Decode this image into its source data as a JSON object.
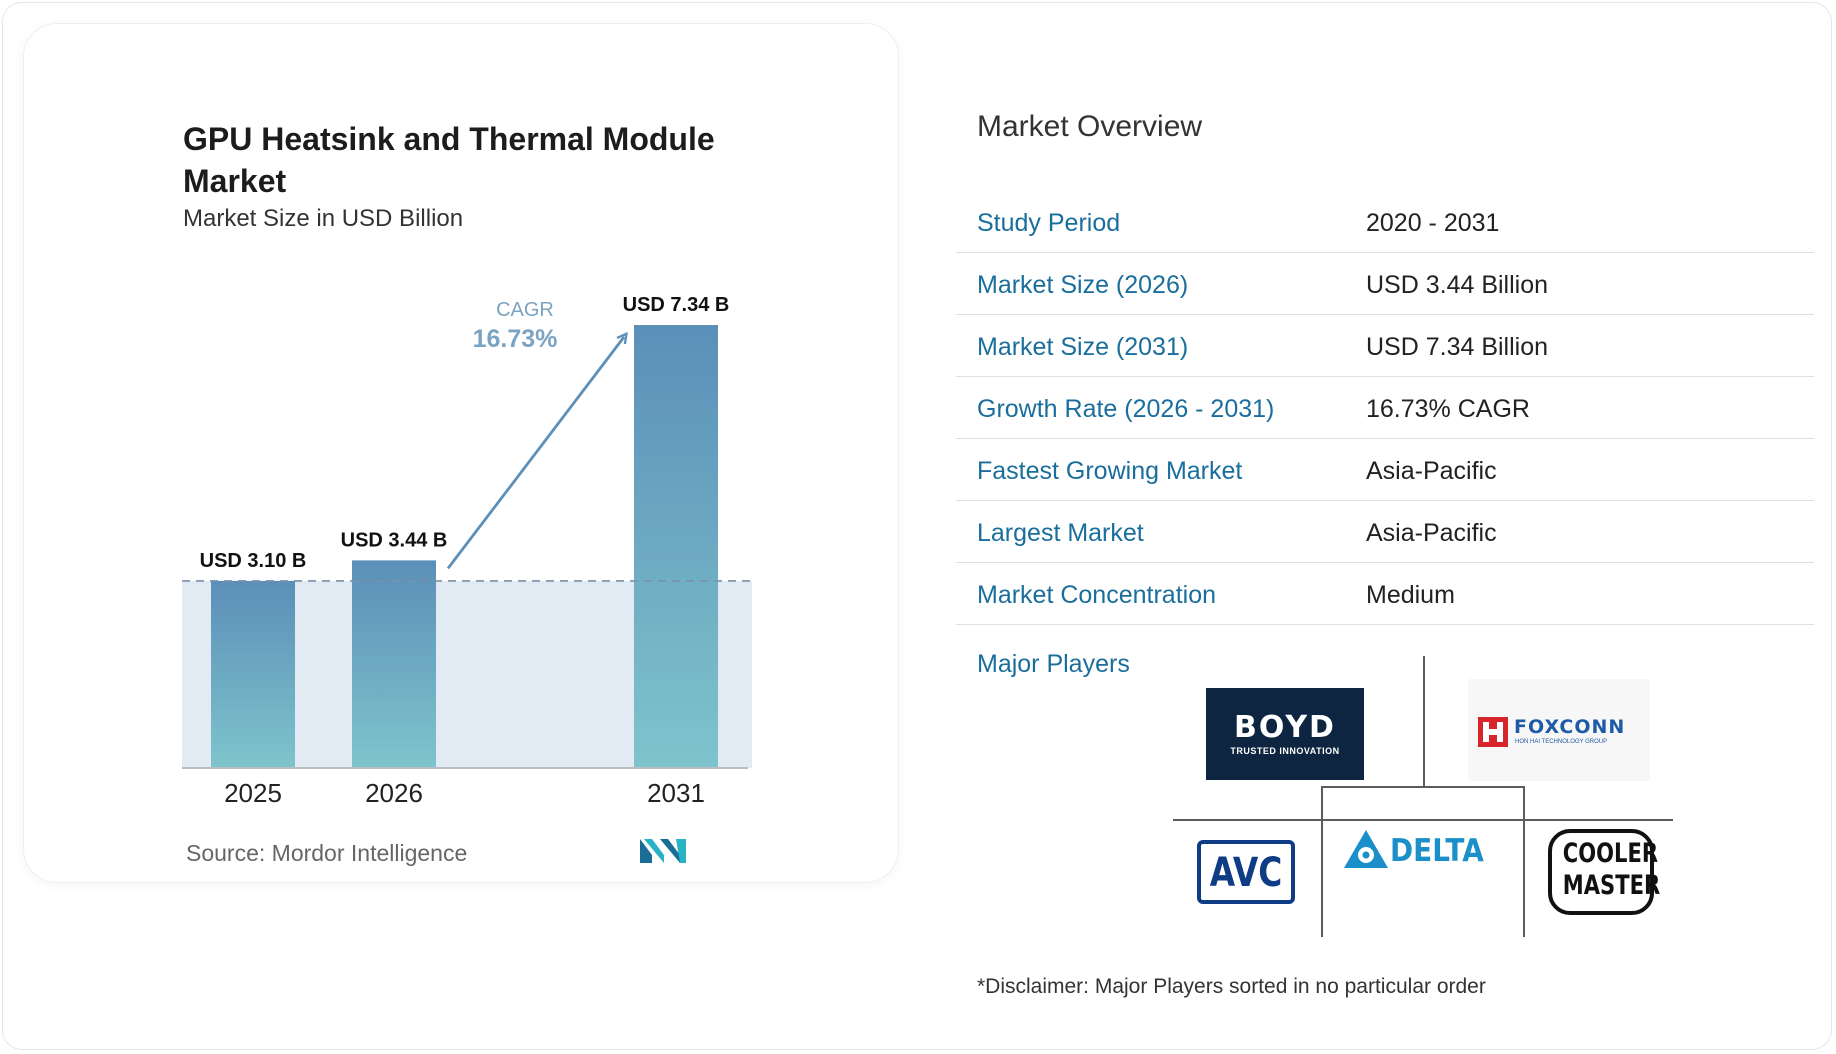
{
  "chart_data": {
    "type": "bar",
    "title": "GPU Heatsink and Thermal Module Market",
    "subtitle": "Market Size in USD Billion",
    "categories": [
      "2025",
      "2026",
      "2031"
    ],
    "values": [
      3.1,
      3.44,
      7.34
    ],
    "data_labels": [
      "USD 3.10 B",
      "USD 3.44 B",
      "USD 7.34 B"
    ],
    "ylim": [
      0,
      7.34
    ],
    "grid": false,
    "annotation": {
      "label": "CAGR",
      "value": "16.73%"
    },
    "source": "Source: Mordor Intelligence",
    "colors": {
      "bar_top": "#5b8fb8",
      "bar_bottom": "#7ec4cc",
      "band": "#e2eaf3",
      "arrow": "#5d90b8",
      "cagr": "#7ba3c2"
    }
  },
  "overview": {
    "title": "Market Overview",
    "rows": [
      {
        "label": "Study Period",
        "value": "2020 - 2031"
      },
      {
        "label": "Market Size (2026)",
        "value": "USD 3.44 Billion"
      },
      {
        "label": "Market Size (2031)",
        "value": "USD 7.34 Billion"
      },
      {
        "label": "Growth Rate (2026 - 2031)",
        "value": "16.73% CAGR"
      },
      {
        "label": "Fastest Growing Market",
        "value": "Asia-Pacific"
      },
      {
        "label": "Largest Market",
        "value": "Asia-Pacific"
      },
      {
        "label": "Market Concentration",
        "value": "Medium"
      }
    ]
  },
  "players": {
    "label": "Major Players",
    "logos": {
      "boyd": {
        "name": "BOYD",
        "tagline": "TRUSTED INNOVATION"
      },
      "foxconn": {
        "name": "FOXCONN",
        "tagline": "HON HAI TECHNOLOGY GROUP"
      },
      "avc": {
        "name": "AVC"
      },
      "delta": {
        "name": "DELTA"
      },
      "coolermaster": {
        "line1": "COOLER",
        "line2": "MASTER"
      }
    }
  },
  "disclaimer": "*Disclaimer: Major Players sorted in no particular order"
}
